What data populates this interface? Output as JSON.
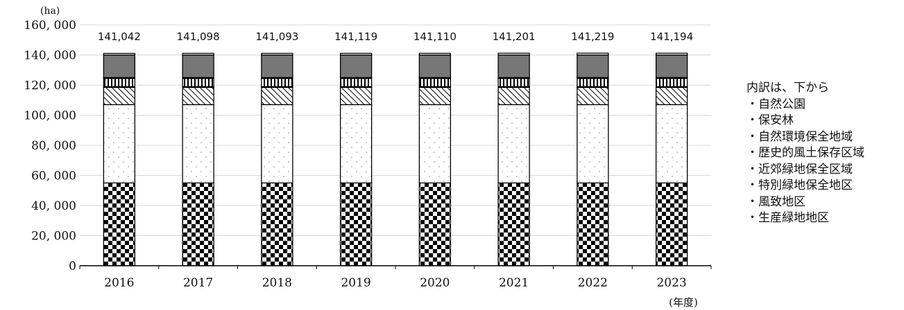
{
  "chart_data": {
    "type": "bar",
    "stacked": true,
    "y_unit": "(ha)",
    "x_unit": "(年度)",
    "categories": [
      "2016",
      "2017",
      "2018",
      "2019",
      "2020",
      "2021",
      "2022",
      "2023"
    ],
    "totals": [
      "141,042",
      "141,098",
      "141,093",
      "141,119",
      "141,110",
      "141,201",
      "141,219",
      "141,194"
    ],
    "ylim": [
      0,
      160000
    ],
    "yticks": [
      0,
      20000,
      40000,
      60000,
      80000,
      100000,
      120000,
      140000,
      160000
    ],
    "ytick_labels": [
      "0",
      "20, 000",
      "40, 000",
      "60, 000",
      "80, 000",
      "100, 000",
      "120, 000",
      "140, 000",
      "160, 000"
    ],
    "grid": true,
    "series": [
      {
        "name": "自然公園",
        "pattern": "checker",
        "values": [
          55000,
          55000,
          55000,
          55000,
          55000,
          55000,
          55000,
          55000
        ]
      },
      {
        "name": "保安林",
        "pattern": "dots",
        "values": [
          52000,
          52000,
          52000,
          52000,
          52000,
          52000,
          52000,
          52000
        ]
      },
      {
        "name": "自然環境保全地域",
        "pattern": "diagonal",
        "values": [
          11500,
          11500,
          11500,
          11500,
          11500,
          11500,
          11500,
          11500
        ]
      },
      {
        "name": "歴史的風土保存区域",
        "pattern": "white",
        "values": [
          500,
          500,
          500,
          500,
          500,
          500,
          500,
          500
        ]
      },
      {
        "name": "近郊緑地保全区域",
        "pattern": "vertical",
        "values": [
          5500,
          5500,
          5500,
          5500,
          5500,
          5500,
          5500,
          5500
        ]
      },
      {
        "name": "特別緑地保全地区",
        "pattern": "white",
        "values": [
          500,
          500,
          500,
          500,
          500,
          500,
          500,
          500
        ]
      },
      {
        "name": "風致地区",
        "pattern": "gray",
        "values": [
          15000,
          15000,
          15000,
          15000,
          15000,
          15000,
          15000,
          15000
        ]
      },
      {
        "name": "生産緑地地区",
        "pattern": "white",
        "values": [
          1042,
          1098,
          1093,
          1119,
          1110,
          1201,
          1219,
          1194
        ]
      }
    ],
    "legend_title": "内訳は、下から",
    "legend_items": [
      "・自然公園",
      "・保安林",
      "・自然環境保全地域",
      "・歴史的風土保存区域",
      "・近郊緑地保全区域",
      "・特別緑地保全地区",
      "・風致地区",
      "・生産緑地地区"
    ],
    "legend_position": "right",
    "colors": {
      "gray": "#777777",
      "gridline": "#d9d9d9",
      "axis": "#000000"
    }
  }
}
